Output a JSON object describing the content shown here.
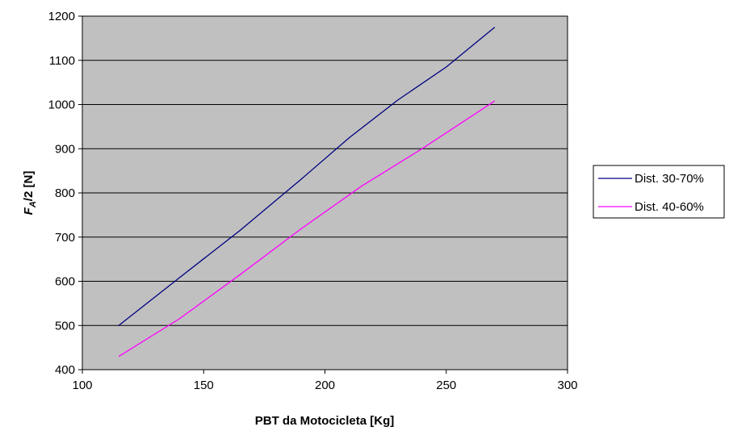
{
  "chart_data": {
    "type": "line",
    "xlabel": "PBT da Motocicleta [Kg]",
    "ylabel": {
      "main": "F",
      "sub": "A",
      "rest": "/2  [N]"
    },
    "xlim": [
      100,
      300
    ],
    "ylim": [
      400,
      1200
    ],
    "x_ticks": [
      100,
      150,
      200,
      250,
      300
    ],
    "y_ticks": [
      400,
      500,
      600,
      700,
      800,
      900,
      1000,
      1100,
      1200
    ],
    "grid": "horizontal",
    "legend_position": "right",
    "background": "#c0c0c0",
    "series": [
      {
        "name": "Dist. 30-70%",
        "color": "#000080",
        "points": [
          [
            115,
            500
          ],
          [
            140,
            608
          ],
          [
            165,
            715
          ],
          [
            190,
            830
          ],
          [
            210,
            925
          ],
          [
            230,
            1010
          ],
          [
            250,
            1085
          ],
          [
            270,
            1175
          ]
        ]
      },
      {
        "name": "Dist. 40-60%",
        "color": "#ff00ff",
        "points": [
          [
            115,
            430
          ],
          [
            140,
            515
          ],
          [
            165,
            615
          ],
          [
            190,
            718
          ],
          [
            215,
            815
          ],
          [
            240,
            900
          ],
          [
            270,
            1008
          ]
        ]
      }
    ]
  }
}
